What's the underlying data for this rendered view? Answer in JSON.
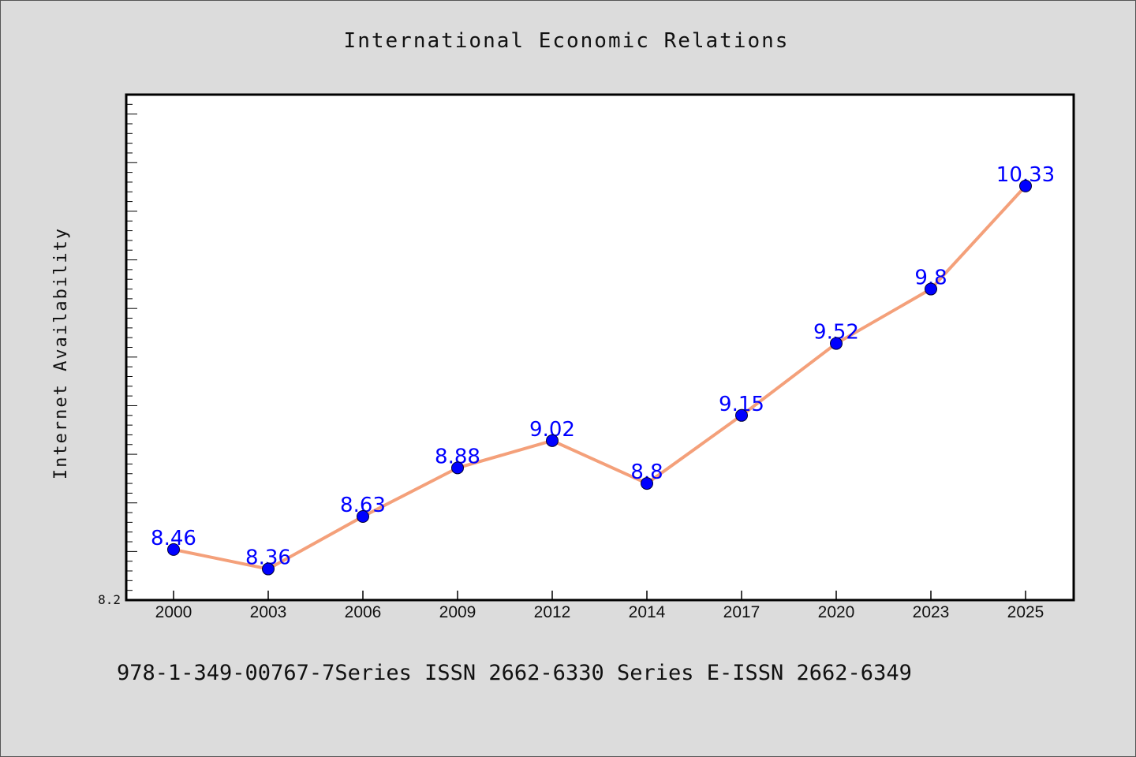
{
  "chart_data": {
    "type": "line",
    "title": "International Economic Relations",
    "xlabel": "",
    "ylabel": "Internet Availability",
    "categories": [
      "2000",
      "2003",
      "2006",
      "2009",
      "2012",
      "2014",
      "2017",
      "2020",
      "2023",
      "2025"
    ],
    "series": [
      {
        "values": [
          8.46,
          8.36,
          8.63,
          8.88,
          9.02,
          8.8,
          9.15,
          9.52,
          9.8,
          10.33
        ],
        "labels": [
          "8.46",
          "8.36",
          "8.63",
          "8.88",
          "9.02",
          "8.8",
          "9.15",
          "9.52",
          "9.8",
          "10.33"
        ]
      }
    ],
    "ylim": [
      8.2,
      10.8
    ],
    "ytick_min_label": "8.2",
    "grid": false,
    "line_color": "#f4a07a",
    "marker_color": "#0000ff",
    "label_color": "#0000ff"
  },
  "footer_text": "978-1-349-00767-7Series ISSN 2662-6330 Series E-ISSN 2662-6349"
}
